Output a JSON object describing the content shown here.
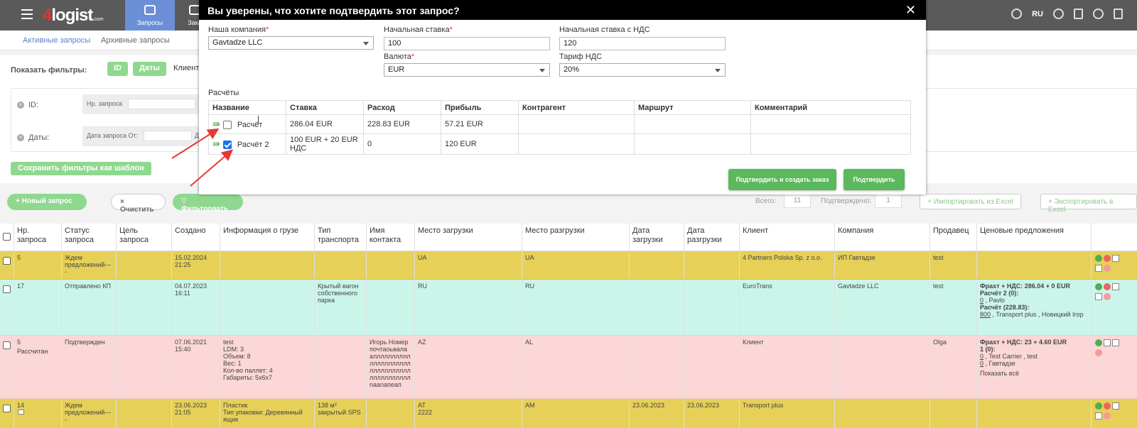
{
  "app": {
    "logo_digit": "4",
    "logo_text": "logist",
    "logo_suffix": ".com",
    "nav_active_label": "Запросы",
    "nav_second_label": "Зака",
    "lang": "RU"
  },
  "subtabs": {
    "active": "Активные запросы",
    "archive": "Архивные запросы"
  },
  "filters": {
    "show_label": "Показать фильтры:",
    "id_btn": "ID",
    "dates_btn": "Даты",
    "clients_btn": "Клиенты",
    "id_label": "ID:",
    "id_field_label": "Нр. запроса",
    "dates_label": "Даты:",
    "dates_field_label": "Дата запроса От:",
    "dates_cut": "Д",
    "save_template": "Сохранить фильтры как шаблон"
  },
  "actions": {
    "new_request": "Новый запрос",
    "clear": "Очистить",
    "filter": "Фильтровать",
    "total_label": "Всего:",
    "total_value": "11",
    "confirmed_label": "Подтверждено:",
    "confirmed_value": "1",
    "import_excel": "Импортировать из Excel",
    "export_excel": "Экспортировать в Excel"
  },
  "table": {
    "headers": {
      "nr": "Нр. запроса",
      "status": "Статус запроса",
      "purpose": "Цель запроса",
      "created": "Создано",
      "cargo": "Информация о грузе",
      "transport": "Тип транспорта",
      "contact": "Имя контакта",
      "loading": "Место загрузки",
      "unloading": "Место разгрузки",
      "load_date": "Дата загрузки",
      "unload_date": "Дата разгрузки",
      "client": "Клиент",
      "company": "Компания",
      "seller": "Продавец",
      "offers": "Ценовые предложения"
    },
    "rows": [
      {
        "nr": "5",
        "status": "Ждем предложений----",
        "created": "15.02.2024 21:25",
        "loading": "UA",
        "unloading": "UA",
        "client": "4 Partners Polska Sp. z o.o.",
        "company": "ИП Гавтадзе",
        "seller": "test"
      },
      {
        "nr": "17",
        "status": "Отправлено КП",
        "created": "04.07.2023 16:11",
        "transport": "Крытый вагон собственного парка",
        "loading": "RU",
        "unloading": "RU",
        "client": "EuroTrans",
        "company": "Gavtadze LLC",
        "seller": "test",
        "offer_line1": "Фрахт + НДС: 286.04 + 0 EUR",
        "offer_line2": "Расчёт 2 (0):",
        "offer_line3_u": "0",
        "offer_line3": " , Pavlo",
        "offer_line4": "Расчёт (228.83):",
        "offer_line5_u": "800",
        "offer_line5": " , Transport plus , Новицкий Ігор"
      },
      {
        "nr": "5",
        "nr_sub": "Рассчитан",
        "status": "Подтвержден",
        "created": "07.06.2021 15:40",
        "cargo_line1": "test",
        "cargo_line2": "LDM: 3",
        "cargo_line3": "Объем: 8",
        "cargo_line4": "Вес: 1",
        "cargo_line5": "Кол-во паллет: 4",
        "cargo_line6": "Габариты: 5x6x7",
        "contact": "Игорь Номер почтаоьвала аллллллллллллллллллллллллллллллллллллллллллл naanaпeaп",
        "loading": "AZ",
        "unloading": "AL",
        "client": "Клиент",
        "seller": "Olga",
        "offer_line1": "Фрахт + НДС: 23 + 4.60 EUR",
        "offer_line2": "1 (0):",
        "offer_line3_u": "0",
        "offer_line3": " , Test Carrier , test",
        "offer_line4_u": "0",
        "offer_line4": " , Гавтадзе",
        "offer_line5": "Показать всё"
      },
      {
        "nr": "14",
        "status": "Ждем предложений----",
        "created": "23.06.2023 21:05",
        "cargo_line1": "Пластик",
        "cargo_line2": "Тип упаковки: Деревянный ящик",
        "transport": "138 м³ закрытый SPS",
        "loading": "AT",
        "loading2": "2222",
        "unloading": "AM",
        "load_date": "23.06.2023",
        "unload_date": "23.06.2023",
        "client": "Transport plus"
      }
    ]
  },
  "modal": {
    "title": "Вы уверены, что хотите подтвердить этот запрос?",
    "company_label": "Наша компания",
    "company_value": "Gavtadze LLC",
    "rate_label": "Начальная ставка",
    "rate_value": "100",
    "rate_vat_label": "Начальная ставка с НДС",
    "rate_vat_value": "120",
    "currency_label": "Валюта",
    "currency_value": "EUR",
    "vat_label": "Тариф НДС",
    "vat_value": "20%",
    "calc_title": "Расчёты",
    "calc_headers": {
      "name": "Название",
      "rate": "Ставка",
      "expense": "Расход",
      "profit": "Прибыль",
      "contractor": "Контрагент",
      "route": "Маршрут",
      "comment": "Комментарий"
    },
    "calc_rows": [
      {
        "name": "Расчёт",
        "rate": "286.04 EUR",
        "expense": "228.83 EUR",
        "profit": "57.21 EUR",
        "checked": false
      },
      {
        "name": "Расчёт 2",
        "rate": "100 EUR + 20 EUR НДС",
        "expense": "0",
        "profit": "120 EUR",
        "checked": true
      }
    ],
    "btn_confirm_create": "Подтвердить и создать заказ",
    "btn_confirm": "Подтвердить"
  },
  "colors": {
    "topbar": "#5a5a5a",
    "nav_active": "#6b8fd6",
    "green": "#5cb85c",
    "row_yellow": "#e6d058",
    "row_cyan": "#ccf5ea",
    "row_pink": "#fbd7d7",
    "annotation": "#e53935"
  }
}
